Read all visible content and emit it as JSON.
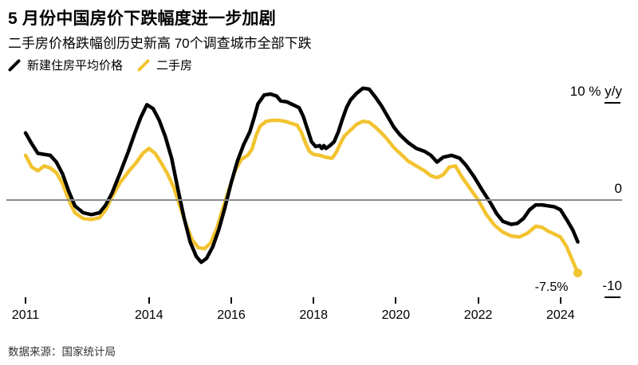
{
  "header": {
    "title": "5 月份中国房价下跌幅度进一步加剧",
    "subtitle": "二手房价格跌幅创历史新高 70个调查城市全部下跌"
  },
  "legend": [
    {
      "label": "新建住房平均价格",
      "color": "#000000",
      "icon": "slash-icon"
    },
    {
      "label": "二手房",
      "color": "#F2C330",
      "icon": "slash-icon"
    }
  ],
  "footer": {
    "source": "数据来源：国家统计局"
  },
  "colors": {
    "new_home_line": "#000000",
    "second_hand_line": "#F2C330",
    "zero_line": "#8a8a8a",
    "background": "#ffffff"
  },
  "chart_data": {
    "type": "line",
    "unit": "% y/y",
    "title": "5 月份中国房价下跌幅度进一步加剧",
    "grid": "zero-line-only",
    "legend_position": "top-left",
    "y_axis": {
      "range": [
        -10,
        12
      ],
      "ticks": [
        {
          "value": 10,
          "label": "10 % y/y"
        },
        {
          "value": 0,
          "label": "0"
        },
        {
          "value": -10,
          "label": "-10"
        }
      ]
    },
    "x_axis": {
      "range": [
        2011,
        2024.6
      ],
      "tick_years": [
        2011,
        2014,
        2016,
        2018,
        2020,
        2022,
        2024
      ],
      "tick_labels": [
        "2011",
        "2014",
        "2016",
        "2018",
        "2020",
        "2022",
        "2024"
      ]
    },
    "annotation": {
      "label": "-7.5%",
      "series": "二手房",
      "x": 2024.42,
      "value": -7.5
    },
    "series": [
      {
        "name": "新建住房平均价格",
        "color": "#000000",
        "end_dot": false,
        "points": [
          [
            2011.0,
            6.9
          ],
          [
            2011.15,
            5.8
          ],
          [
            2011.3,
            4.8
          ],
          [
            2011.45,
            4.7
          ],
          [
            2011.6,
            4.6
          ],
          [
            2011.75,
            3.9
          ],
          [
            2011.9,
            2.7
          ],
          [
            2012.05,
            0.9
          ],
          [
            2012.2,
            -0.6
          ],
          [
            2012.4,
            -1.3
          ],
          [
            2012.6,
            -1.5
          ],
          [
            2012.8,
            -1.3
          ],
          [
            2012.95,
            -0.5
          ],
          [
            2013.1,
            0.7
          ],
          [
            2013.3,
            2.8
          ],
          [
            2013.5,
            5.0
          ],
          [
            2013.65,
            6.8
          ],
          [
            2013.8,
            8.5
          ],
          [
            2013.95,
            9.8
          ],
          [
            2014.1,
            9.4
          ],
          [
            2014.25,
            8.2
          ],
          [
            2014.4,
            6.5
          ],
          [
            2014.55,
            4.3
          ],
          [
            2014.7,
            1.2
          ],
          [
            2014.85,
            -1.8
          ],
          [
            2015.0,
            -4.3
          ],
          [
            2015.15,
            -5.8
          ],
          [
            2015.27,
            -6.4
          ],
          [
            2015.4,
            -6.0
          ],
          [
            2015.55,
            -4.8
          ],
          [
            2015.7,
            -3.0
          ],
          [
            2015.85,
            -0.7
          ],
          [
            2016.0,
            1.8
          ],
          [
            2016.15,
            4.0
          ],
          [
            2016.3,
            5.7
          ],
          [
            2016.45,
            7.0
          ],
          [
            2016.55,
            8.4
          ],
          [
            2016.65,
            9.9
          ],
          [
            2016.8,
            10.8
          ],
          [
            2016.95,
            10.9
          ],
          [
            2017.1,
            10.7
          ],
          [
            2017.2,
            10.2
          ],
          [
            2017.35,
            10.1
          ],
          [
            2017.5,
            9.8
          ],
          [
            2017.65,
            9.5
          ],
          [
            2017.75,
            8.6
          ],
          [
            2017.85,
            7.3
          ],
          [
            2017.95,
            6.0
          ],
          [
            2018.05,
            5.5
          ],
          [
            2018.15,
            5.6
          ],
          [
            2018.2,
            5.3
          ],
          [
            2018.25,
            5.6
          ],
          [
            2018.3,
            5.3
          ],
          [
            2018.4,
            5.6
          ],
          [
            2018.5,
            6.0
          ],
          [
            2018.6,
            7.0
          ],
          [
            2018.7,
            8.3
          ],
          [
            2018.8,
            9.5
          ],
          [
            2018.9,
            10.3
          ],
          [
            2019.05,
            11.0
          ],
          [
            2019.2,
            11.5
          ],
          [
            2019.35,
            11.4
          ],
          [
            2019.5,
            10.6
          ],
          [
            2019.65,
            9.7
          ],
          [
            2019.8,
            8.6
          ],
          [
            2019.95,
            7.5
          ],
          [
            2020.1,
            6.7
          ],
          [
            2020.3,
            5.9
          ],
          [
            2020.5,
            5.3
          ],
          [
            2020.7,
            5.0
          ],
          [
            2020.85,
            4.6
          ],
          [
            2021.0,
            3.9
          ],
          [
            2021.15,
            4.4
          ],
          [
            2021.35,
            4.6
          ],
          [
            2021.55,
            4.3
          ],
          [
            2021.7,
            3.6
          ],
          [
            2021.9,
            2.4
          ],
          [
            2022.1,
            1.0
          ],
          [
            2022.3,
            -0.3
          ],
          [
            2022.45,
            -1.4
          ],
          [
            2022.6,
            -2.2
          ],
          [
            2022.8,
            -2.5
          ],
          [
            2022.95,
            -2.4
          ],
          [
            2023.1,
            -1.9
          ],
          [
            2023.25,
            -1.0
          ],
          [
            2023.4,
            -0.5
          ],
          [
            2023.55,
            -0.5
          ],
          [
            2023.7,
            -0.6
          ],
          [
            2023.85,
            -0.7
          ],
          [
            2024.0,
            -1.0
          ],
          [
            2024.15,
            -2.0
          ],
          [
            2024.3,
            -3.1
          ],
          [
            2024.42,
            -4.3
          ]
        ]
      },
      {
        "name": "二手房",
        "color": "#F2C330",
        "end_dot": true,
        "points": [
          [
            2011.0,
            4.6
          ],
          [
            2011.15,
            3.4
          ],
          [
            2011.3,
            3.0
          ],
          [
            2011.45,
            3.5
          ],
          [
            2011.6,
            3.3
          ],
          [
            2011.75,
            2.8
          ],
          [
            2011.9,
            1.7
          ],
          [
            2012.05,
            0.0
          ],
          [
            2012.2,
            -1.3
          ],
          [
            2012.4,
            -1.9
          ],
          [
            2012.6,
            -2.0
          ],
          [
            2012.8,
            -1.8
          ],
          [
            2012.95,
            -1.0
          ],
          [
            2013.1,
            0.3
          ],
          [
            2013.3,
            1.8
          ],
          [
            2013.5,
            2.9
          ],
          [
            2013.7,
            3.9
          ],
          [
            2013.85,
            4.8
          ],
          [
            2014.0,
            5.3
          ],
          [
            2014.15,
            4.8
          ],
          [
            2014.3,
            3.8
          ],
          [
            2014.45,
            2.7
          ],
          [
            2014.6,
            1.3
          ],
          [
            2014.75,
            -0.6
          ],
          [
            2014.9,
            -2.5
          ],
          [
            2015.05,
            -4.1
          ],
          [
            2015.2,
            -4.9
          ],
          [
            2015.35,
            -5.0
          ],
          [
            2015.5,
            -4.4
          ],
          [
            2015.65,
            -2.9
          ],
          [
            2015.8,
            -0.8
          ],
          [
            2015.95,
            1.2
          ],
          [
            2016.1,
            3.1
          ],
          [
            2016.25,
            4.2
          ],
          [
            2016.4,
            4.6
          ],
          [
            2016.5,
            5.2
          ],
          [
            2016.6,
            6.6
          ],
          [
            2016.7,
            7.6
          ],
          [
            2016.85,
            8.1
          ],
          [
            2017.0,
            8.2
          ],
          [
            2017.15,
            8.2
          ],
          [
            2017.3,
            8.1
          ],
          [
            2017.45,
            7.9
          ],
          [
            2017.6,
            7.7
          ],
          [
            2017.7,
            7.0
          ],
          [
            2017.8,
            5.9
          ],
          [
            2017.9,
            5.0
          ],
          [
            2018.0,
            4.7
          ],
          [
            2018.15,
            4.6
          ],
          [
            2018.3,
            4.4
          ],
          [
            2018.45,
            4.3
          ],
          [
            2018.55,
            4.9
          ],
          [
            2018.65,
            5.8
          ],
          [
            2018.75,
            6.6
          ],
          [
            2018.9,
            7.2
          ],
          [
            2019.05,
            7.8
          ],
          [
            2019.2,
            8.1
          ],
          [
            2019.35,
            8.0
          ],
          [
            2019.5,
            7.5
          ],
          [
            2019.65,
            6.9
          ],
          [
            2019.8,
            6.2
          ],
          [
            2019.95,
            5.4
          ],
          [
            2020.1,
            4.8
          ],
          [
            2020.3,
            4.0
          ],
          [
            2020.5,
            3.5
          ],
          [
            2020.7,
            3.0
          ],
          [
            2020.85,
            2.5
          ],
          [
            2021.0,
            2.3
          ],
          [
            2021.15,
            2.6
          ],
          [
            2021.3,
            3.4
          ],
          [
            2021.45,
            3.5
          ],
          [
            2021.6,
            2.4
          ],
          [
            2021.8,
            1.2
          ],
          [
            2022.0,
            0.0
          ],
          [
            2022.2,
            -1.5
          ],
          [
            2022.4,
            -2.6
          ],
          [
            2022.6,
            -3.3
          ],
          [
            2022.8,
            -3.7
          ],
          [
            2023.0,
            -3.8
          ],
          [
            2023.2,
            -3.4
          ],
          [
            2023.4,
            -2.7
          ],
          [
            2023.55,
            -2.8
          ],
          [
            2023.7,
            -3.2
          ],
          [
            2023.85,
            -3.5
          ],
          [
            2024.0,
            -3.8
          ],
          [
            2024.15,
            -4.8
          ],
          [
            2024.3,
            -6.3
          ],
          [
            2024.42,
            -7.5
          ]
        ]
      }
    ]
  }
}
